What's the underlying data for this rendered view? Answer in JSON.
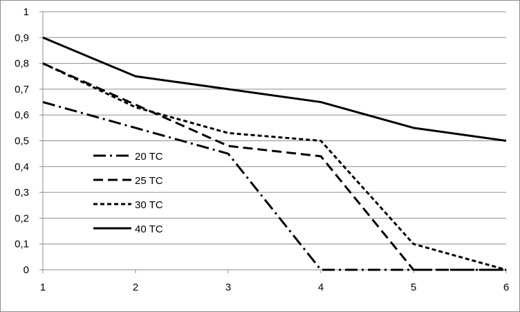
{
  "chart_data": {
    "type": "line",
    "title": "",
    "xlabel": "",
    "ylabel": "",
    "x": [
      1,
      2,
      3,
      4,
      5,
      6
    ],
    "x_tick_labels": [
      "1",
      "2",
      "3",
      "4",
      "5",
      "6"
    ],
    "y_tick_labels": [
      "0",
      "0,1",
      "0,2",
      "0,3",
      "0,4",
      "0,5",
      "0,6",
      "0,7",
      "0,8",
      "0,9",
      "1"
    ],
    "y_ticks": [
      0,
      0.1,
      0.2,
      0.3,
      0.4,
      0.5,
      0.6,
      0.7,
      0.8,
      0.9,
      1
    ],
    "xlim": [
      1,
      6
    ],
    "ylim": [
      0,
      1
    ],
    "grid": "horizontal",
    "legend_position": "center-left",
    "series": [
      {
        "name": "20 TC",
        "values": [
          0.65,
          0.55,
          0.45,
          0.0,
          0.0,
          0.0
        ],
        "dash": "dash-dot",
        "color": "#000000"
      },
      {
        "name": "25 TC",
        "values": [
          0.8,
          0.64,
          0.48,
          0.44,
          0.0,
          0.0
        ],
        "dash": "long-dash",
        "color": "#000000"
      },
      {
        "name": "30 TC",
        "values": [
          0.8,
          0.63,
          0.53,
          0.5,
          0.1,
          0.0
        ],
        "dash": "short-dash",
        "color": "#000000"
      },
      {
        "name": "40 TC",
        "values": [
          0.9,
          0.75,
          0.7,
          0.65,
          0.55,
          0.5
        ],
        "dash": "solid",
        "color": "#000000"
      }
    ]
  }
}
